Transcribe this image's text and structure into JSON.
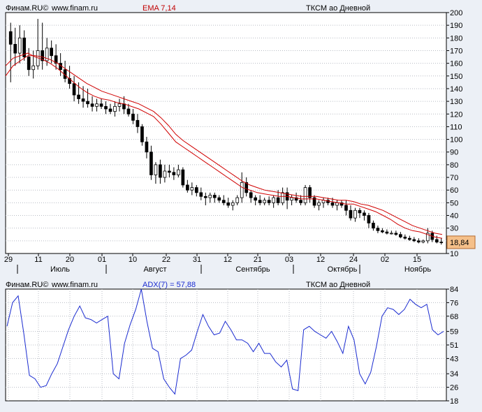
{
  "top_header": {
    "brand": "Финам.RU©",
    "site": "www.finam.ru",
    "indicator": "EMA 7,14",
    "instrument": "ТКСМ ао Дневной"
  },
  "bottom_header": {
    "brand": "Финам.RU©",
    "site": "www.finam.ru",
    "indicator": "ADX(7) = 57,88",
    "instrument": "ТКСМ ао Дневной"
  },
  "colors": {
    "background": "#ecf0f6",
    "plot_bg": "#ffffff",
    "ema": "#d00000",
    "adx": "#1a2bd0",
    "grid": "#b8bcc4",
    "price_tag": "#f5c08a"
  },
  "chart_data": [
    {
      "type": "candlestick",
      "title": "ТКСМ ао Дневной",
      "indicator": "EMA 7,14",
      "ylim": [
        10,
        200
      ],
      "y_ticks": [
        10,
        20,
        30,
        40,
        50,
        60,
        70,
        80,
        90,
        100,
        110,
        120,
        130,
        140,
        150,
        160,
        170,
        180,
        190,
        200
      ],
      "day_labels": [
        "29",
        "11",
        "20",
        "01",
        "10",
        "22",
        "31",
        "12",
        "21",
        "03",
        "12",
        "24",
        "02",
        "15"
      ],
      "month_labels": [
        "Июль",
        "Август",
        "Сентябрь",
        "Октябрь",
        "Ноябрь"
      ],
      "last_price": "18,84",
      "candles": [
        [
          185,
          192,
          145,
          175
        ],
        [
          175,
          188,
          158,
          168
        ],
        [
          168,
          190,
          160,
          180
        ],
        [
          180,
          186,
          162,
          165
        ],
        [
          165,
          172,
          150,
          155
        ],
        [
          155,
          170,
          148,
          158
        ],
        [
          158,
          195,
          155,
          170
        ],
        [
          170,
          192,
          155,
          162
        ],
        [
          162,
          180,
          158,
          172
        ],
        [
          172,
          178,
          160,
          166
        ],
        [
          166,
          175,
          155,
          160
        ],
        [
          160,
          168,
          150,
          155
        ],
        [
          155,
          162,
          145,
          148
        ],
        [
          148,
          158,
          140,
          144
        ],
        [
          144,
          150,
          130,
          135
        ],
        [
          135,
          145,
          128,
          132
        ],
        [
          132,
          142,
          125,
          130
        ],
        [
          130,
          140,
          125,
          128
        ],
        [
          128,
          134,
          122,
          126
        ],
        [
          126,
          132,
          122,
          128
        ],
        [
          128,
          132,
          124,
          126
        ],
        [
          126,
          130,
          120,
          124
        ],
        [
          124,
          128,
          120,
          122
        ],
        [
          122,
          130,
          118,
          126
        ],
        [
          126,
          132,
          122,
          128
        ],
        [
          128,
          134,
          120,
          124
        ],
        [
          124,
          128,
          118,
          120
        ],
        [
          120,
          124,
          112,
          115
        ],
        [
          115,
          120,
          105,
          110
        ],
        [
          110,
          112,
          95,
          98
        ],
        [
          98,
          102,
          85,
          90
        ],
        [
          90,
          95,
          68,
          72
        ],
        [
          72,
          82,
          65,
          80
        ],
        [
          80,
          84,
          65,
          70
        ],
        [
          70,
          80,
          66,
          75
        ],
        [
          75,
          80,
          70,
          74
        ],
        [
          74,
          78,
          68,
          72
        ],
        [
          72,
          80,
          70,
          76
        ],
        [
          76,
          78,
          62,
          64
        ],
        [
          64,
          68,
          58,
          60
        ],
        [
          60,
          66,
          56,
          62
        ],
        [
          62,
          64,
          55,
          58
        ],
        [
          58,
          62,
          52,
          55
        ],
        [
          55,
          58,
          48,
          54
        ],
        [
          54,
          58,
          50,
          56
        ],
        [
          56,
          58,
          50,
          54
        ],
        [
          54,
          56,
          50,
          52
        ],
        [
          52,
          56,
          48,
          50
        ],
        [
          50,
          54,
          46,
          48
        ],
        [
          48,
          52,
          44,
          50
        ],
        [
          50,
          56,
          48,
          54
        ],
        [
          54,
          74,
          50,
          66
        ],
        [
          66,
          70,
          55,
          58
        ],
        [
          58,
          60,
          50,
          54
        ],
        [
          54,
          56,
          48,
          52
        ],
        [
          52,
          56,
          48,
          50
        ],
        [
          50,
          54,
          48,
          52
        ],
        [
          52,
          55,
          48,
          50
        ],
        [
          50,
          56,
          46,
          54
        ],
        [
          54,
          60,
          48,
          50
        ],
        [
          50,
          62,
          48,
          58
        ],
        [
          58,
          62,
          45,
          52
        ],
        [
          52,
          56,
          48,
          54
        ],
        [
          54,
          58,
          50,
          52
        ],
        [
          52,
          56,
          48,
          50
        ],
        [
          50,
          64,
          48,
          62
        ],
        [
          62,
          64,
          50,
          54
        ],
        [
          54,
          56,
          46,
          48
        ],
        [
          48,
          52,
          44,
          50
        ],
        [
          50,
          54,
          46,
          52
        ],
        [
          52,
          54,
          48,
          50
        ],
        [
          50,
          54,
          46,
          48
        ],
        [
          48,
          52,
          44,
          50
        ],
        [
          50,
          52,
          46,
          48
        ],
        [
          48,
          52,
          40,
          44
        ],
        [
          44,
          48,
          36,
          38
        ],
        [
          38,
          46,
          35,
          44
        ],
        [
          44,
          46,
          38,
          42
        ],
        [
          42,
          44,
          36,
          40
        ],
        [
          40,
          42,
          30,
          34
        ],
        [
          34,
          36,
          28,
          30
        ],
        [
          30,
          32,
          26,
          28
        ],
        [
          28,
          30,
          26,
          27
        ],
        [
          27,
          29,
          25,
          26
        ],
        [
          26,
          28,
          25,
          26
        ],
        [
          26,
          28,
          24,
          25
        ],
        [
          25,
          27,
          22,
          23
        ],
        [
          23,
          25,
          21,
          22
        ],
        [
          22,
          24,
          20,
          21
        ],
        [
          21,
          23,
          19,
          20
        ],
        [
          20,
          22,
          18,
          19
        ],
        [
          19,
          21,
          18,
          20
        ],
        [
          20,
          30,
          18,
          26
        ],
        [
          26,
          28,
          19,
          21
        ],
        [
          21,
          24,
          18,
          19
        ],
        [
          19,
          22,
          17,
          18.84
        ]
      ],
      "ema_fast": [
        158,
        164,
        166,
        168,
        165,
        163,
        160,
        156,
        151,
        146,
        141,
        137,
        134,
        132,
        131,
        129,
        128,
        126,
        124,
        121,
        118,
        112,
        105,
        98,
        94,
        90,
        86,
        82,
        78,
        74,
        70,
        66,
        62,
        60,
        58,
        57,
        56,
        55,
        55,
        54,
        53,
        53,
        53,
        52,
        51,
        50,
        49,
        49,
        47,
        45,
        43,
        40,
        37,
        33,
        30,
        28,
        27,
        25,
        23,
        22
      ],
      "ema_slow": [
        150,
        158,
        162,
        166,
        166,
        165,
        163,
        160,
        156,
        152,
        148,
        144,
        141,
        138,
        136,
        134,
        132,
        130,
        128,
        125,
        122,
        117,
        111,
        104,
        99,
        95,
        91,
        87,
        83,
        79,
        75,
        71,
        67,
        64,
        62,
        60,
        59,
        58,
        57,
        56,
        55,
        55,
        55,
        54,
        53,
        52,
        52,
        51,
        49,
        48,
        46,
        44,
        41,
        38,
        35,
        32,
        30,
        28,
        26,
        25
      ]
    },
    {
      "type": "line",
      "title": "ТКСМ ао Дневной",
      "indicator": "ADX(7) = 57,88",
      "ylim": [
        18,
        84
      ],
      "y_ticks": [
        18,
        26,
        34,
        43,
        51,
        59,
        68,
        76,
        84
      ],
      "series": [
        {
          "name": "ADX(7)",
          "values": [
            62,
            76,
            80,
            58,
            33,
            31,
            26,
            27,
            34,
            40,
            50,
            60,
            68,
            74,
            67,
            66,
            64,
            66,
            68,
            34,
            31,
            52,
            63,
            72,
            84,
            65,
            49,
            47,
            31,
            26,
            22,
            43,
            45,
            48,
            59,
            69,
            62,
            57,
            58,
            65,
            60,
            54,
            54,
            52,
            47,
            52,
            46,
            46,
            41,
            38,
            42,
            25,
            24,
            60,
            62,
            59,
            57,
            55,
            59,
            53,
            46,
            62,
            54,
            34,
            28,
            35,
            50,
            68,
            73,
            72,
            69,
            72,
            78,
            75,
            73,
            75,
            60,
            57,
            59
          ]
        }
      ]
    }
  ]
}
